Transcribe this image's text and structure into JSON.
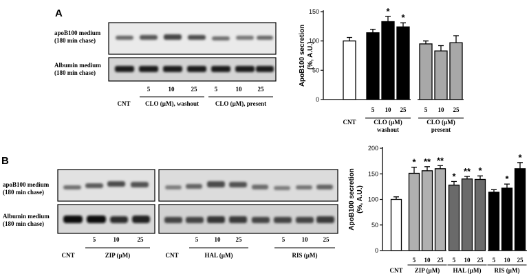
{
  "panels": {
    "A": {
      "letter": "A",
      "blot_labels": {
        "apob": [
          "apoB100 medium",
          "(180 min chase)"
        ],
        "albumin": [
          "Albumin medium",
          "(180 min chase)"
        ]
      },
      "lane_numbers": [
        "5",
        "10",
        "25",
        "5",
        "10",
        "25"
      ],
      "cnt_label": "CNT",
      "group_labels": [
        "CLO (µM), washout",
        "CLO (µM), present"
      ]
    },
    "B": {
      "letter": "B",
      "blot_labels": {
        "apob": [
          "apoB100 medium",
          "(180 min chase)"
        ],
        "albumin": [
          "Albumin medium",
          "(180 min chase)"
        ]
      },
      "lane_numbers_left": [
        "5",
        "10",
        "25"
      ],
      "lane_numbers_right": [
        "5",
        "10",
        "25",
        "5",
        "10",
        "25"
      ],
      "cnt_label": "CNT",
      "group_labels": [
        "ZIP (µM)",
        "HAL (µM)",
        "RIS (µM)"
      ]
    }
  },
  "chart_data": [
    {
      "type": "bar",
      "panel": "A",
      "ylabel": [
        "ApoB100 secretion",
        "(%, A.U.)"
      ],
      "ylim": [
        0,
        150
      ],
      "yticks": [
        0,
        50,
        100,
        150
      ],
      "categories": [
        "CNT",
        "5",
        "10",
        "25",
        "5",
        "10",
        "25"
      ],
      "values": [
        100,
        114,
        133,
        124,
        95,
        83,
        97
      ],
      "errors": [
        6,
        6,
        9,
        7,
        5,
        9,
        12
      ],
      "significance": [
        "",
        "",
        "*",
        "*",
        "",
        "",
        ""
      ],
      "fill_colors": [
        "#ffffff",
        "#000000",
        "#000000",
        "#000000",
        "#a8a8a8",
        "#a8a8a8",
        "#a8a8a8"
      ],
      "cnt_label": "CNT",
      "group_labels": [
        {
          "lines": [
            "CLO (µM)",
            "washout"
          ]
        },
        {
          "lines": [
            "CLO (µM)",
            "present"
          ]
        }
      ]
    },
    {
      "type": "bar",
      "panel": "B",
      "ylabel": [
        "ApoB100 secretion",
        "(%, A.U.)"
      ],
      "ylim": [
        0,
        200
      ],
      "yticks": [
        0,
        50,
        100,
        150,
        200
      ],
      "categories": [
        "CNT",
        "5",
        "10",
        "25",
        "5",
        "10",
        "25",
        "5",
        "10",
        "25"
      ],
      "values": [
        100,
        151,
        156,
        160,
        128,
        140,
        139,
        114,
        122,
        160
      ],
      "errors": [
        5,
        12,
        8,
        6,
        7,
        5,
        7,
        5,
        8,
        12
      ],
      "significance": [
        "",
        "*",
        "**",
        "**",
        "*",
        "**",
        "*",
        "",
        "*",
        "*"
      ],
      "fill_colors": [
        "#ffffff",
        "#b0b0b0",
        "#b0b0b0",
        "#b0b0b0",
        "#6a6a6a",
        "#6a6a6a",
        "#6a6a6a",
        "#000000",
        "#000000",
        "#000000"
      ],
      "cnt_label": "CNT",
      "group_labels": [
        {
          "lines": [
            "ZIP (µM)"
          ]
        },
        {
          "lines": [
            "HAL (µM)"
          ]
        },
        {
          "lines": [
            "RIS (µM)"
          ]
        }
      ]
    }
  ]
}
